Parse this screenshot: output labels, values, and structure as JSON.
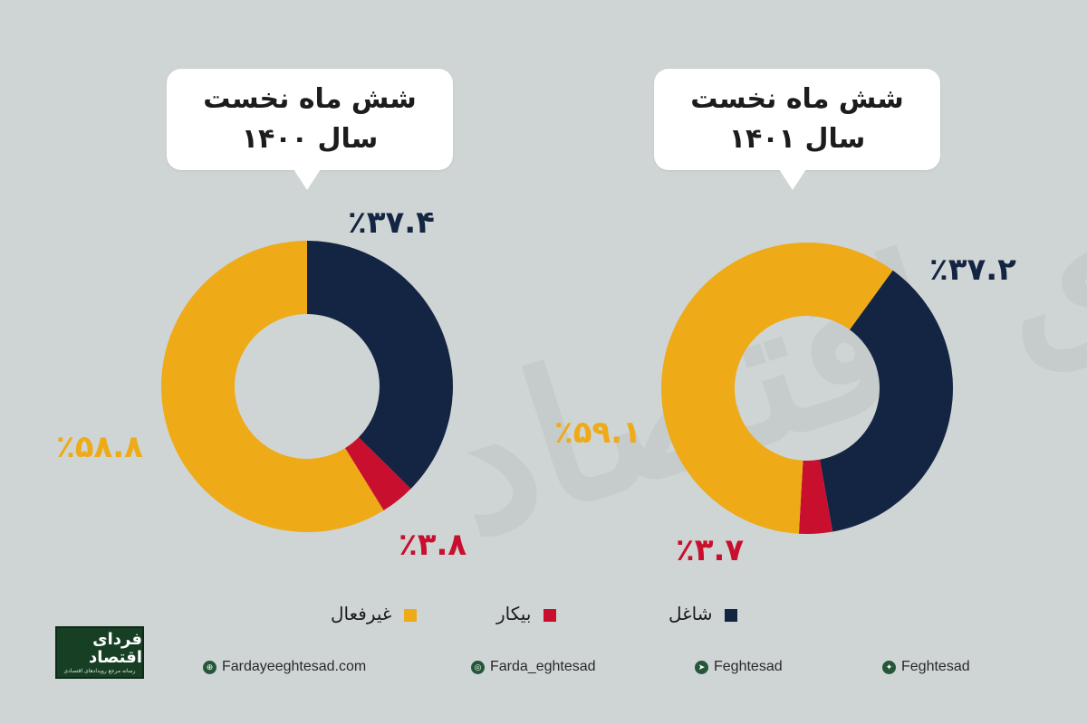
{
  "watermark": "فردای اقتصاد",
  "charts_text": {
    "left": {
      "line1": "شش ماه نخست",
      "line2": "سال ۱۴۰۰"
    },
    "right": {
      "line1": "شش ماه نخست",
      "line2": "سال ۱۴۰۱"
    }
  },
  "legend": [
    {
      "label": "شاغل",
      "color": "#142543"
    },
    {
      "label": "بیکار",
      "color": "#c8102e"
    },
    {
      "label": "غیرفعال",
      "color": "#eeaa17"
    }
  ],
  "logo": {
    "title": "فردای اقتصاد",
    "subtitle": "رسانه مرجع رویدادهای اقتصادی"
  },
  "social": [
    {
      "icon": "globe-icon",
      "glyph": "⊕",
      "label": "Fardayeeghtesad.com"
    },
    {
      "icon": "instagram-icon",
      "glyph": "◎",
      "label": "Farda_eghtesad"
    },
    {
      "icon": "telegram-icon",
      "glyph": "➤",
      "label": "Feghtesad"
    },
    {
      "icon": "twitter-icon",
      "glyph": "✦",
      "label": "Feghtesad"
    }
  ],
  "chart_data": [
    {
      "type": "pie",
      "title": "شش ماه نخست سال ۱۴۰۰",
      "categories": [
        "شاغل",
        "بیکار",
        "غیرفعال"
      ],
      "values": [
        37.4,
        3.8,
        58.8
      ],
      "labels": [
        "٪۳۷.۴",
        "٪۳.۸",
        "٪۵۸.۸"
      ],
      "colors": [
        "#142543",
        "#c8102e",
        "#eeaa17"
      ],
      "donut": true,
      "start_angle_deg": 0
    },
    {
      "type": "pie",
      "title": "شش ماه نخست سال ۱۴۰۱",
      "categories": [
        "شاغل",
        "بیکار",
        "غیرفعال"
      ],
      "values": [
        37.2,
        3.7,
        59.1
      ],
      "labels": [
        "٪۳۷.۲",
        "٪۳.۷",
        "٪۵۹.۱"
      ],
      "colors": [
        "#142543",
        "#c8102e",
        "#eeaa17"
      ],
      "donut": true,
      "start_angle_deg": 36
    }
  ]
}
